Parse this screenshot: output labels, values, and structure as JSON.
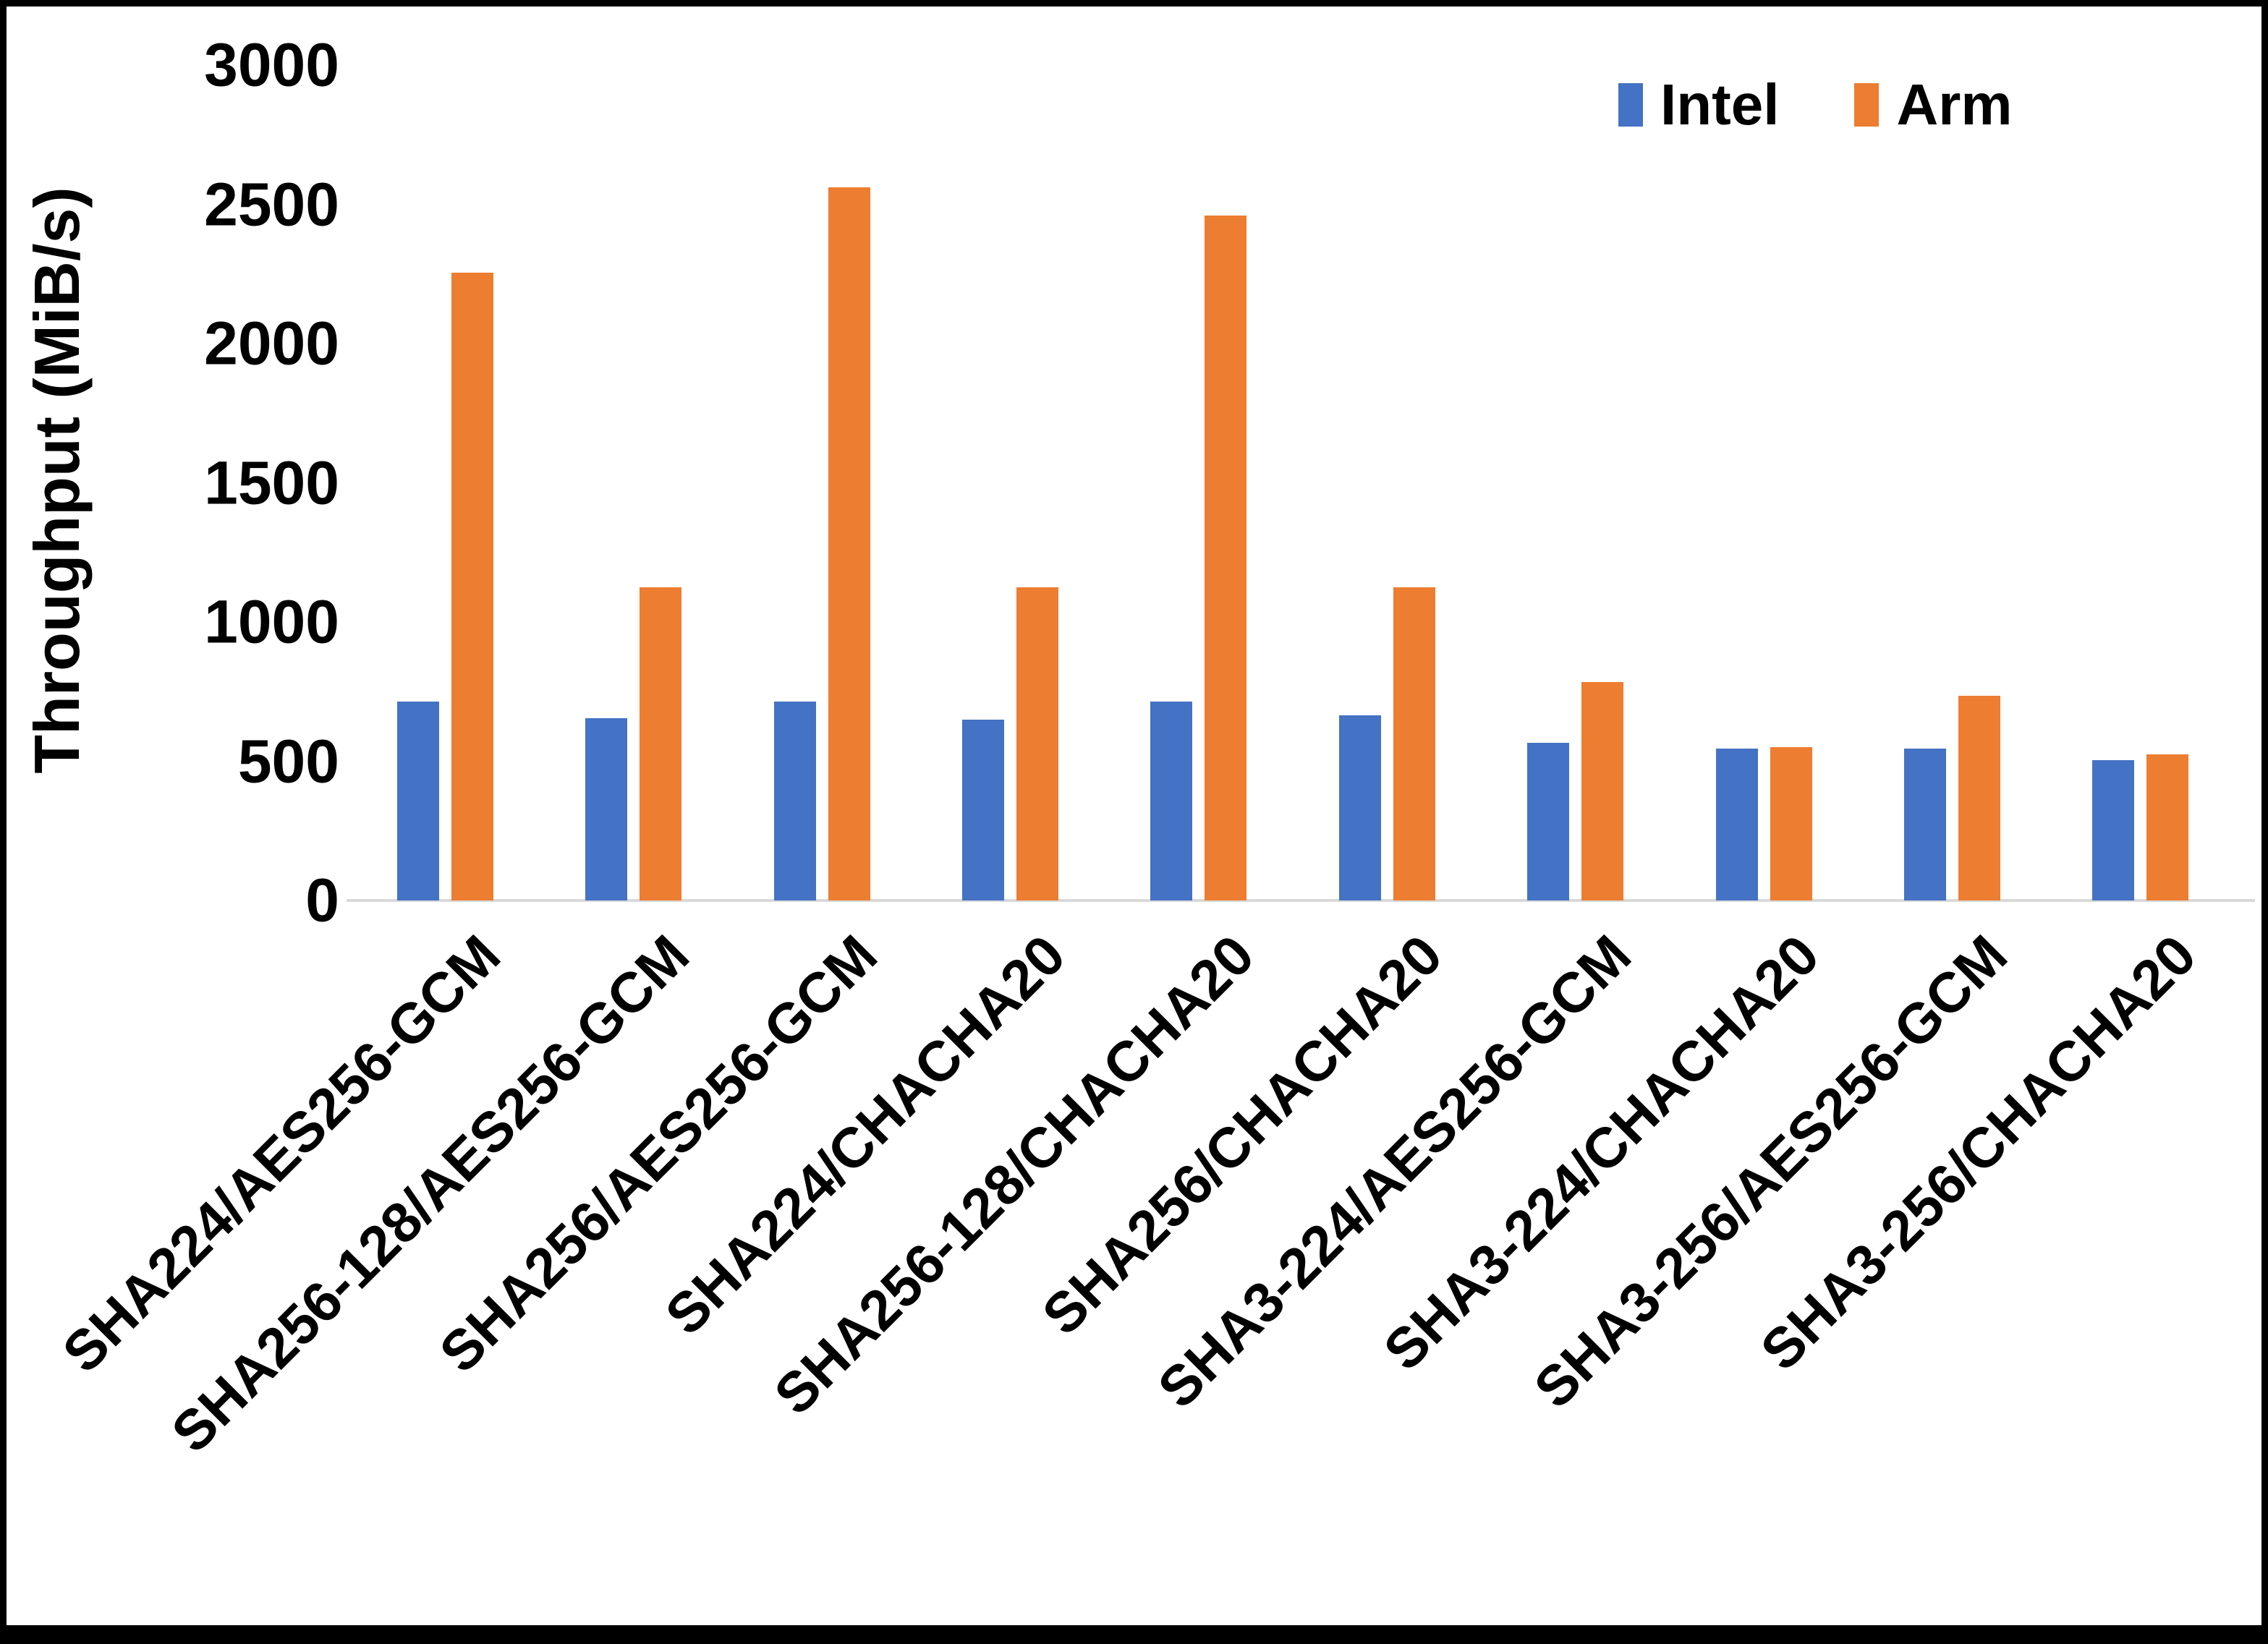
{
  "chart_data": {
    "type": "bar",
    "title": "",
    "xlabel": "",
    "ylabel": "Throughput (MiB/s)",
    "ylim": [
      0,
      3000
    ],
    "ytick_step": 500,
    "yticks": [
      3000,
      2500,
      2000,
      1500,
      1000,
      500,
      0
    ],
    "grid": false,
    "legend_position": "top-right",
    "categories": [
      "SHA224/AES256-GCM",
      "SHA256-128/AES256-GCM",
      "SHA256/AES256-GCM",
      "SHA224/CHACHA20",
      "SHA256-128/CHACHA20",
      "SHA256/CHACHA20",
      "SHA3-224/AES256-GCM",
      "SHA3-224/CHACHA20",
      "SHA3-256/AES256-GCM",
      "SHA3-256/CHACHA20"
    ],
    "series": [
      {
        "name": "Intel",
        "color": "#4472C4",
        "values": [
          715,
          655,
          715,
          650,
          715,
          665,
          565,
          545,
          545,
          505
        ]
      },
      {
        "name": "Arm",
        "color": "#ED7D31",
        "values": [
          2255,
          1125,
          2560,
          1125,
          2460,
          1125,
          785,
          550,
          735,
          525
        ]
      }
    ]
  },
  "colors": {
    "axis_line": "#d9d9d9",
    "text": "#000000"
  }
}
